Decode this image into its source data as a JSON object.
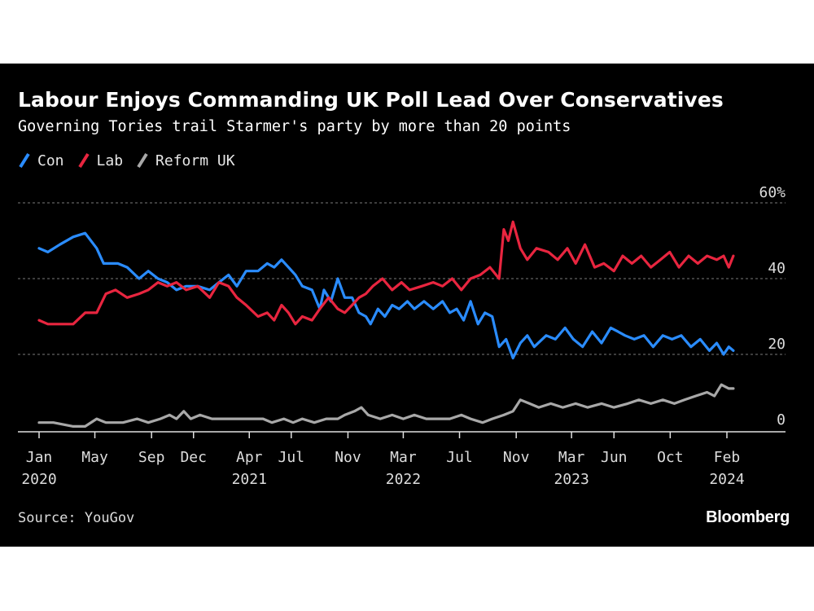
{
  "title": "Labour Enjoys Commanding UK Poll Lead Over Conservatives",
  "subtitle": "Governing Tories trail Starmer's party by more than 20 points",
  "source": "Source: YouGov",
  "brand": "Bloomberg",
  "chart_data": {
    "type": "line",
    "xlabel": "",
    "ylabel": "",
    "ylim": [
      0,
      60
    ],
    "xlim": [
      "2019-12-15",
      "2024-03-15"
    ],
    "grid": true,
    "legend_position": "top-left",
    "y_ticks": [
      {
        "value": 60,
        "label": "60%"
      },
      {
        "value": 40,
        "label": "40"
      },
      {
        "value": 20,
        "label": "20"
      },
      {
        "value": 0,
        "label": "0"
      }
    ],
    "x_ticks": [
      {
        "date": "2020-01-01",
        "label": "Jan",
        "year": "2020"
      },
      {
        "date": "2020-05-01",
        "label": "May",
        "year": ""
      },
      {
        "date": "2020-09-01",
        "label": "Sep",
        "year": ""
      },
      {
        "date": "2020-12-01",
        "label": "Dec",
        "year": ""
      },
      {
        "date": "2021-04-01",
        "label": "Apr",
        "year": "2021"
      },
      {
        "date": "2021-07-01",
        "label": "Jul",
        "year": ""
      },
      {
        "date": "2021-11-01",
        "label": "Nov",
        "year": ""
      },
      {
        "date": "2022-03-01",
        "label": "Mar",
        "year": "2022"
      },
      {
        "date": "2022-07-01",
        "label": "Jul",
        "year": ""
      },
      {
        "date": "2022-11-01",
        "label": "Nov",
        "year": ""
      },
      {
        "date": "2023-03-01",
        "label": "Mar",
        "year": "2023"
      },
      {
        "date": "2023-06-01",
        "label": "Jun",
        "year": ""
      },
      {
        "date": "2023-10-01",
        "label": "Oct",
        "year": ""
      },
      {
        "date": "2024-02-01",
        "label": "Feb",
        "year": "2024"
      }
    ],
    "series": [
      {
        "name": "Con",
        "color": "#2a8cff",
        "points": [
          [
            "2020-01-01",
            48
          ],
          [
            "2020-01-20",
            47
          ],
          [
            "2020-02-15",
            49
          ],
          [
            "2020-03-15",
            51
          ],
          [
            "2020-04-10",
            52
          ],
          [
            "2020-05-05",
            48
          ],
          [
            "2020-05-20",
            44
          ],
          [
            "2020-06-20",
            44
          ],
          [
            "2020-07-10",
            43
          ],
          [
            "2020-08-05",
            40
          ],
          [
            "2020-08-25",
            42
          ],
          [
            "2020-09-15",
            40
          ],
          [
            "2020-10-05",
            39
          ],
          [
            "2020-10-25",
            37
          ],
          [
            "2020-11-15",
            38
          ],
          [
            "2020-12-10",
            38
          ],
          [
            "2021-01-05",
            37
          ],
          [
            "2021-01-25",
            39
          ],
          [
            "2021-02-15",
            41
          ],
          [
            "2021-03-05",
            38
          ],
          [
            "2021-03-25",
            42
          ],
          [
            "2021-04-20",
            42
          ],
          [
            "2021-05-10",
            44
          ],
          [
            "2021-05-25",
            43
          ],
          [
            "2021-06-10",
            45
          ],
          [
            "2021-06-25",
            43
          ],
          [
            "2021-07-10",
            41
          ],
          [
            "2021-07-25",
            38
          ],
          [
            "2021-08-15",
            37
          ],
          [
            "2021-09-01",
            32
          ],
          [
            "2021-09-10",
            37
          ],
          [
            "2021-09-25",
            34
          ],
          [
            "2021-10-10",
            40
          ],
          [
            "2021-10-25",
            35
          ],
          [
            "2021-11-10",
            35
          ],
          [
            "2021-11-25",
            31
          ],
          [
            "2021-12-10",
            30
          ],
          [
            "2021-12-20",
            28
          ],
          [
            "2022-01-05",
            32
          ],
          [
            "2022-01-20",
            30
          ],
          [
            "2022-02-05",
            33
          ],
          [
            "2022-02-20",
            32
          ],
          [
            "2022-03-10",
            34
          ],
          [
            "2022-03-25",
            32
          ],
          [
            "2022-04-15",
            34
          ],
          [
            "2022-05-05",
            32
          ],
          [
            "2022-05-25",
            34
          ],
          [
            "2022-06-10",
            31
          ],
          [
            "2022-06-25",
            32
          ],
          [
            "2022-07-10",
            29
          ],
          [
            "2022-07-25",
            34
          ],
          [
            "2022-08-10",
            28
          ],
          [
            "2022-08-25",
            31
          ],
          [
            "2022-09-10",
            30
          ],
          [
            "2022-09-25",
            22
          ],
          [
            "2022-10-10",
            24
          ],
          [
            "2022-10-25",
            19
          ],
          [
            "2022-11-10",
            23
          ],
          [
            "2022-11-25",
            25
          ],
          [
            "2022-12-10",
            22
          ],
          [
            "2023-01-05",
            25
          ],
          [
            "2023-01-25",
            24
          ],
          [
            "2023-02-15",
            27
          ],
          [
            "2023-03-05",
            24
          ],
          [
            "2023-03-25",
            22
          ],
          [
            "2023-04-15",
            26
          ],
          [
            "2023-05-05",
            23
          ],
          [
            "2023-05-25",
            27
          ],
          [
            "2023-06-10",
            26
          ],
          [
            "2023-06-25",
            25
          ],
          [
            "2023-07-15",
            24
          ],
          [
            "2023-08-05",
            25
          ],
          [
            "2023-08-25",
            22
          ],
          [
            "2023-09-15",
            25
          ],
          [
            "2023-10-05",
            24
          ],
          [
            "2023-10-25",
            25
          ],
          [
            "2023-11-15",
            22
          ],
          [
            "2023-12-05",
            24
          ],
          [
            "2023-12-25",
            21
          ],
          [
            "2024-01-10",
            23
          ],
          [
            "2024-01-25",
            20
          ],
          [
            "2024-02-05",
            22
          ],
          [
            "2024-02-15",
            21
          ]
        ]
      },
      {
        "name": "Lab",
        "color": "#e8253f",
        "points": [
          [
            "2020-01-01",
            29
          ],
          [
            "2020-01-20",
            28
          ],
          [
            "2020-02-15",
            28
          ],
          [
            "2020-03-15",
            28
          ],
          [
            "2020-04-10",
            31
          ],
          [
            "2020-05-05",
            31
          ],
          [
            "2020-05-25",
            36
          ],
          [
            "2020-06-15",
            37
          ],
          [
            "2020-07-10",
            35
          ],
          [
            "2020-08-05",
            36
          ],
          [
            "2020-08-25",
            37
          ],
          [
            "2020-09-15",
            39
          ],
          [
            "2020-10-05",
            38
          ],
          [
            "2020-10-25",
            39
          ],
          [
            "2020-11-15",
            37
          ],
          [
            "2020-12-10",
            38
          ],
          [
            "2021-01-05",
            35
          ],
          [
            "2021-01-25",
            39
          ],
          [
            "2021-02-15",
            38
          ],
          [
            "2021-03-05",
            35
          ],
          [
            "2021-03-25",
            33
          ],
          [
            "2021-04-20",
            30
          ],
          [
            "2021-05-10",
            31
          ],
          [
            "2021-05-25",
            29
          ],
          [
            "2021-06-10",
            33
          ],
          [
            "2021-06-25",
            31
          ],
          [
            "2021-07-10",
            28
          ],
          [
            "2021-07-25",
            30
          ],
          [
            "2021-08-15",
            29
          ],
          [
            "2021-09-01",
            32
          ],
          [
            "2021-09-20",
            35
          ],
          [
            "2021-10-10",
            32
          ],
          [
            "2021-10-25",
            31
          ],
          [
            "2021-11-10",
            33
          ],
          [
            "2021-11-25",
            35
          ],
          [
            "2021-12-10",
            36
          ],
          [
            "2021-12-25",
            38
          ],
          [
            "2022-01-15",
            40
          ],
          [
            "2022-02-05",
            37
          ],
          [
            "2022-02-25",
            39
          ],
          [
            "2022-03-15",
            37
          ],
          [
            "2022-04-10",
            38
          ],
          [
            "2022-05-05",
            39
          ],
          [
            "2022-05-25",
            38
          ],
          [
            "2022-06-15",
            40
          ],
          [
            "2022-07-05",
            37
          ],
          [
            "2022-07-25",
            40
          ],
          [
            "2022-08-15",
            41
          ],
          [
            "2022-09-05",
            43
          ],
          [
            "2022-09-25",
            40
          ],
          [
            "2022-10-05",
            53
          ],
          [
            "2022-10-15",
            50
          ],
          [
            "2022-10-25",
            55
          ],
          [
            "2022-11-10",
            48
          ],
          [
            "2022-11-25",
            45
          ],
          [
            "2022-12-15",
            48
          ],
          [
            "2023-01-10",
            47
          ],
          [
            "2023-01-30",
            45
          ],
          [
            "2023-02-20",
            48
          ],
          [
            "2023-03-10",
            44
          ],
          [
            "2023-03-30",
            49
          ],
          [
            "2023-04-20",
            43
          ],
          [
            "2023-05-10",
            44
          ],
          [
            "2023-06-01",
            42
          ],
          [
            "2023-06-20",
            46
          ],
          [
            "2023-07-10",
            44
          ],
          [
            "2023-07-30",
            46
          ],
          [
            "2023-08-20",
            43
          ],
          [
            "2023-09-10",
            45
          ],
          [
            "2023-09-30",
            47
          ],
          [
            "2023-10-20",
            43
          ],
          [
            "2023-11-10",
            46
          ],
          [
            "2023-11-30",
            44
          ],
          [
            "2023-12-20",
            46
          ],
          [
            "2024-01-10",
            45
          ],
          [
            "2024-01-25",
            46
          ],
          [
            "2024-02-05",
            43
          ],
          [
            "2024-02-15",
            46
          ]
        ]
      },
      {
        "name": "Reform UK",
        "color": "#a8a8a8",
        "points": [
          [
            "2020-01-01",
            2
          ],
          [
            "2020-02-01",
            2
          ],
          [
            "2020-03-15",
            1
          ],
          [
            "2020-04-10",
            1
          ],
          [
            "2020-05-05",
            3
          ],
          [
            "2020-05-25",
            2
          ],
          [
            "2020-07-01",
            2
          ],
          [
            "2020-08-01",
            3
          ],
          [
            "2020-08-25",
            2
          ],
          [
            "2020-09-20",
            3
          ],
          [
            "2020-10-10",
            4
          ],
          [
            "2020-10-25",
            3
          ],
          [
            "2020-11-10",
            5
          ],
          [
            "2020-11-25",
            3
          ],
          [
            "2020-12-15",
            4
          ],
          [
            "2021-01-10",
            3
          ],
          [
            "2021-02-01",
            3
          ],
          [
            "2021-03-01",
            3
          ],
          [
            "2021-04-01",
            3
          ],
          [
            "2021-05-01",
            3
          ],
          [
            "2021-05-20",
            2
          ],
          [
            "2021-06-15",
            3
          ],
          [
            "2021-07-05",
            2
          ],
          [
            "2021-07-25",
            3
          ],
          [
            "2021-08-20",
            2
          ],
          [
            "2021-09-15",
            3
          ],
          [
            "2021-10-10",
            3
          ],
          [
            "2021-10-25",
            4
          ],
          [
            "2021-11-15",
            5
          ],
          [
            "2021-11-30",
            6
          ],
          [
            "2021-12-15",
            4
          ],
          [
            "2022-01-10",
            3
          ],
          [
            "2022-02-05",
            4
          ],
          [
            "2022-03-01",
            3
          ],
          [
            "2022-03-25",
            4
          ],
          [
            "2022-04-20",
            3
          ],
          [
            "2022-05-15",
            3
          ],
          [
            "2022-06-10",
            3
          ],
          [
            "2022-07-05",
            4
          ],
          [
            "2022-07-25",
            3
          ],
          [
            "2022-08-20",
            2
          ],
          [
            "2022-09-10",
            3
          ],
          [
            "2022-10-05",
            4
          ],
          [
            "2022-10-25",
            5
          ],
          [
            "2022-11-10",
            8
          ],
          [
            "2022-11-30",
            7
          ],
          [
            "2022-12-20",
            6
          ],
          [
            "2023-01-15",
            7
          ],
          [
            "2023-02-10",
            6
          ],
          [
            "2023-03-10",
            7
          ],
          [
            "2023-04-05",
            6
          ],
          [
            "2023-05-05",
            7
          ],
          [
            "2023-06-01",
            6
          ],
          [
            "2023-07-01",
            7
          ],
          [
            "2023-07-25",
            8
          ],
          [
            "2023-08-20",
            7
          ],
          [
            "2023-09-15",
            8
          ],
          [
            "2023-10-10",
            7
          ],
          [
            "2023-11-01",
            8
          ],
          [
            "2023-11-25",
            9
          ],
          [
            "2023-12-20",
            10
          ],
          [
            "2024-01-05",
            9
          ],
          [
            "2024-01-20",
            12
          ],
          [
            "2024-02-05",
            11
          ],
          [
            "2024-02-15",
            11
          ]
        ]
      }
    ]
  }
}
